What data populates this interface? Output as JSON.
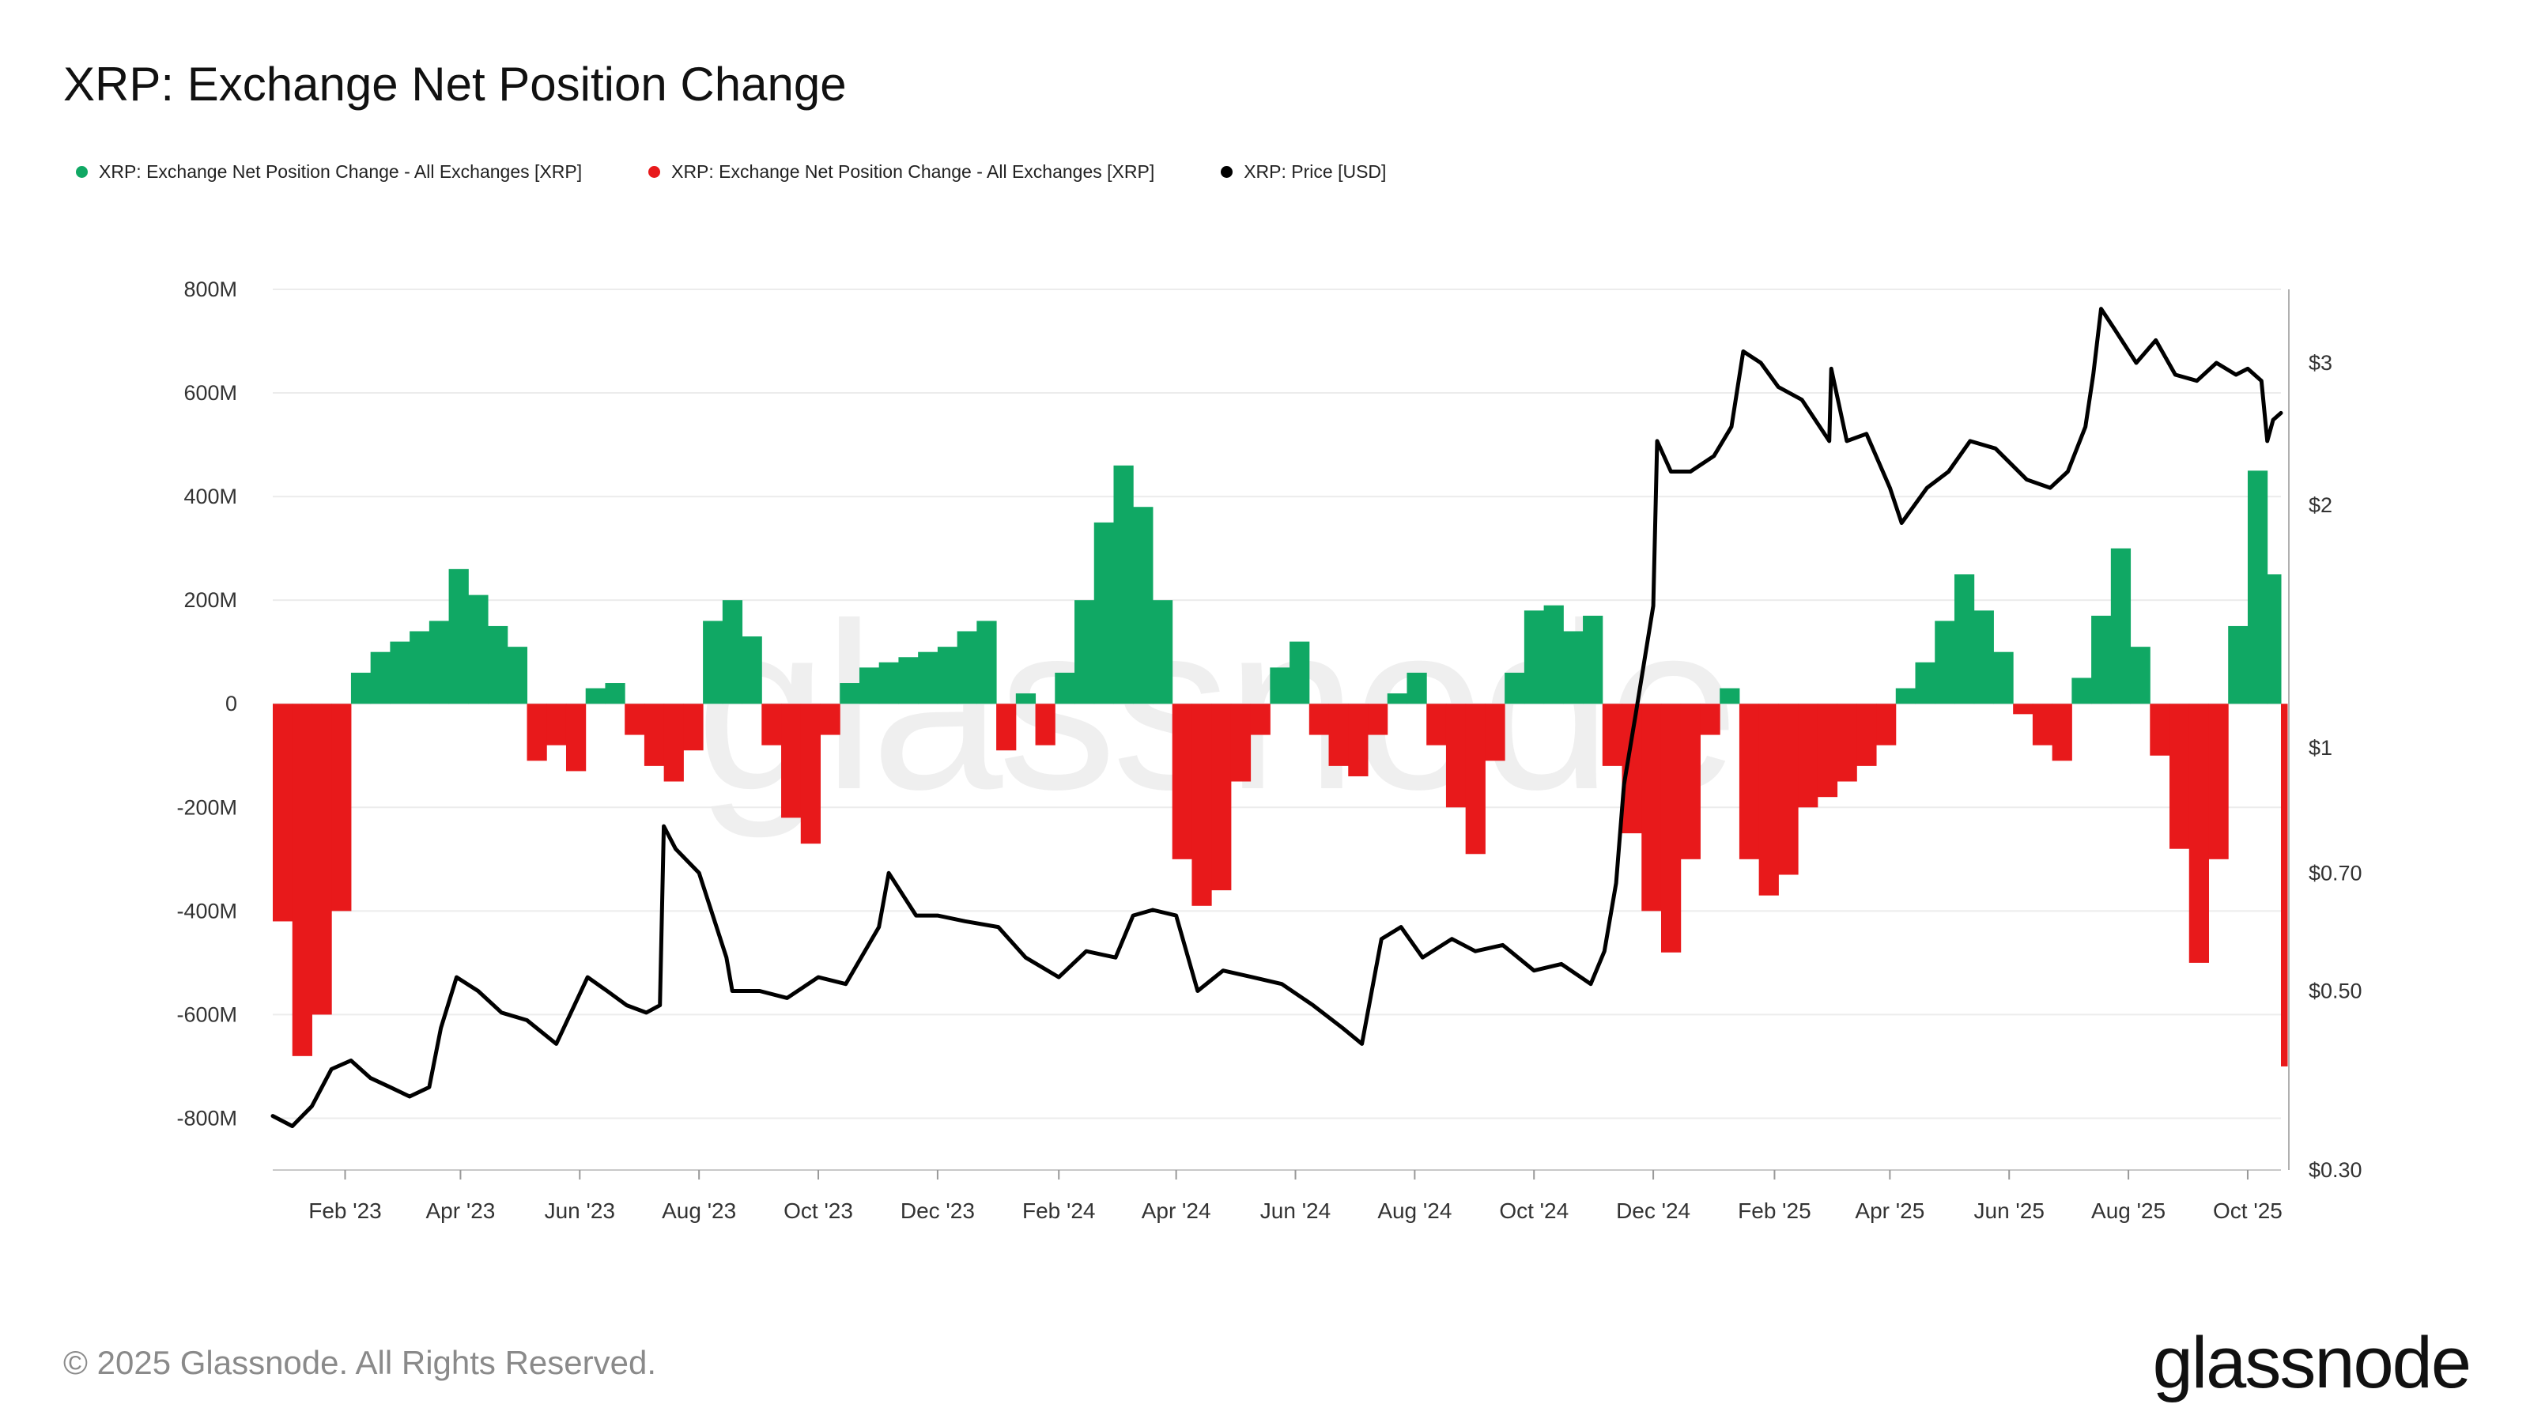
{
  "title": "XRP: Exchange Net Position Change",
  "legend": [
    {
      "label": "XRP: Exchange Net Position Change - All Exchanges [XRP]",
      "color": "#10a864"
    },
    {
      "label": "XRP: Exchange Net Position Change - All Exchanges [XRP]",
      "color": "#e8191b"
    },
    {
      "label": "XRP: Price [USD]",
      "color": "#000000"
    }
  ],
  "watermark": "glassnode",
  "footer": {
    "copyright": "© 2025 Glassnode. All Rights Reserved.",
    "logo": "glassnode"
  },
  "chart_data": {
    "type": "bar",
    "title": "XRP: Exchange Net Position Change",
    "x_start": "2022-12-26",
    "x_end": "2025-10-18",
    "x_ticks": [
      "2023-02-01",
      "2023-04-01",
      "2023-06-01",
      "2023-08-01",
      "2023-10-01",
      "2023-12-01",
      "2024-02-01",
      "2024-04-01",
      "2024-06-01",
      "2024-08-01",
      "2024-10-01",
      "2024-12-01",
      "2025-02-01",
      "2025-04-01",
      "2025-06-01",
      "2025-08-01",
      "2025-10-01"
    ],
    "x_tick_labels": [
      "Feb '23",
      "Apr '23",
      "Jun '23",
      "Aug '23",
      "Oct '23",
      "Dec '23",
      "Feb '24",
      "Apr '24",
      "Jun '24",
      "Aug '24",
      "Oct '24",
      "Dec '24",
      "Feb '25",
      "Apr '25",
      "Jun '25",
      "Aug '25",
      "Oct '25"
    ],
    "left_axis": {
      "ylim": [
        -900,
        800
      ],
      "unit": "M XRP",
      "ticks": [
        800,
        600,
        400,
        200,
        0,
        -200,
        -400,
        -600,
        -800
      ],
      "tick_labels": [
        "800M",
        "600M",
        "400M",
        "200M",
        "0",
        "-200M",
        "-400M",
        "-600M",
        "-800M"
      ]
    },
    "right_axis": {
      "scale": "log",
      "ylim": [
        0.3,
        3.7
      ],
      "ticks": [
        3,
        2,
        1,
        0.7,
        0.5,
        0.3
      ],
      "tick_labels": [
        "$3",
        "$2",
        "$1",
        "$0.70",
        "$0.50",
        "$0.30"
      ]
    },
    "grid": true,
    "legend_position": "top-left",
    "net_position_change": {
      "unit": "M XRP",
      "positive_color": "#10a864",
      "negative_color": "#e8191b",
      "dates": [
        "2022-12-26",
        "2023-01-05",
        "2023-01-15",
        "2023-01-25",
        "2023-02-04",
        "2023-02-14",
        "2023-02-24",
        "2023-03-06",
        "2023-03-16",
        "2023-03-26",
        "2023-04-05",
        "2023-04-15",
        "2023-04-25",
        "2023-05-05",
        "2023-05-15",
        "2023-05-25",
        "2023-06-04",
        "2023-06-14",
        "2023-06-24",
        "2023-07-04",
        "2023-07-14",
        "2023-07-24",
        "2023-08-03",
        "2023-08-13",
        "2023-08-23",
        "2023-09-02",
        "2023-09-12",
        "2023-09-22",
        "2023-10-02",
        "2023-10-12",
        "2023-10-22",
        "2023-11-01",
        "2023-11-11",
        "2023-11-21",
        "2023-12-01",
        "2023-12-11",
        "2023-12-21",
        "2023-12-31",
        "2024-01-10",
        "2024-01-20",
        "2024-01-30",
        "2024-02-09",
        "2024-02-19",
        "2024-02-29",
        "2024-03-10",
        "2024-03-20",
        "2024-03-30",
        "2024-04-09",
        "2024-04-19",
        "2024-04-29",
        "2024-05-09",
        "2024-05-19",
        "2024-05-29",
        "2024-06-08",
        "2024-06-18",
        "2024-06-28",
        "2024-07-08",
        "2024-07-18",
        "2024-07-28",
        "2024-08-07",
        "2024-08-17",
        "2024-08-27",
        "2024-09-06",
        "2024-09-16",
        "2024-09-26",
        "2024-10-06",
        "2024-10-16",
        "2024-10-26",
        "2024-11-05",
        "2024-11-15",
        "2024-11-25",
        "2024-12-05",
        "2024-12-15",
        "2024-12-25",
        "2025-01-04",
        "2025-01-14",
        "2025-01-24",
        "2025-02-03",
        "2025-02-13",
        "2025-02-23",
        "2025-03-05",
        "2025-03-15",
        "2025-03-25",
        "2025-04-04",
        "2025-04-14",
        "2025-04-24",
        "2025-05-04",
        "2025-05-14",
        "2025-05-24",
        "2025-06-03",
        "2025-06-13",
        "2025-06-23",
        "2025-07-03",
        "2025-07-13",
        "2025-07-23",
        "2025-08-02",
        "2025-08-12",
        "2025-08-22",
        "2025-09-01",
        "2025-09-11",
        "2025-09-21",
        "2025-10-01",
        "2025-10-11",
        "2025-10-18"
      ],
      "values": [
        -420,
        -680,
        -600,
        -400,
        60,
        100,
        120,
        140,
        160,
        260,
        210,
        150,
        110,
        -110,
        -80,
        -130,
        30,
        40,
        -60,
        -120,
        -150,
        -90,
        160,
        200,
        130,
        -80,
        -220,
        -270,
        -60,
        40,
        70,
        80,
        90,
        100,
        110,
        140,
        160,
        -90,
        20,
        -80,
        60,
        200,
        350,
        460,
        380,
        200,
        -300,
        -390,
        -360,
        -150,
        -60,
        70,
        120,
        -60,
        -120,
        -140,
        -60,
        20,
        60,
        -80,
        -200,
        -290,
        -110,
        60,
        180,
        190,
        140,
        170,
        -120,
        -250,
        -400,
        -480,
        -300,
        -60,
        30,
        -300,
        -370,
        -330,
        -200,
        -180,
        -150,
        -120,
        -80,
        30,
        80,
        160,
        250,
        180,
        100,
        -20,
        -80,
        -110,
        50,
        170,
        300,
        110,
        -100,
        -280,
        -500,
        -300,
        150,
        450,
        250,
        -700
      ]
    },
    "price_usd": {
      "color": "#000000",
      "dates": [
        "2022-12-26",
        "2023-01-05",
        "2023-01-15",
        "2023-01-25",
        "2023-02-04",
        "2023-02-14",
        "2023-02-24",
        "2023-03-06",
        "2023-03-16",
        "2023-03-22",
        "2023-03-30",
        "2023-04-10",
        "2023-04-22",
        "2023-05-05",
        "2023-05-20",
        "2023-06-05",
        "2023-06-15",
        "2023-06-25",
        "2023-07-05",
        "2023-07-12",
        "2023-07-14",
        "2023-07-20",
        "2023-08-01",
        "2023-08-15",
        "2023-08-18",
        "2023-09-01",
        "2023-09-15",
        "2023-10-01",
        "2023-10-15",
        "2023-11-01",
        "2023-11-06",
        "2023-11-20",
        "2023-12-01",
        "2023-12-15",
        "2024-01-01",
        "2024-01-15",
        "2024-02-01",
        "2024-02-15",
        "2024-03-01",
        "2024-03-10",
        "2024-03-20",
        "2024-04-01",
        "2024-04-12",
        "2024-04-25",
        "2024-05-10",
        "2024-05-25",
        "2024-06-10",
        "2024-06-25",
        "2024-07-05",
        "2024-07-15",
        "2024-07-25",
        "2024-08-05",
        "2024-08-20",
        "2024-09-01",
        "2024-09-15",
        "2024-10-01",
        "2024-10-15",
        "2024-10-30",
        "2024-11-06",
        "2024-11-12",
        "2024-11-16",
        "2024-11-22",
        "2024-12-01",
        "2024-12-03",
        "2024-12-10",
        "2024-12-20",
        "2025-01-01",
        "2025-01-10",
        "2025-01-16",
        "2025-01-25",
        "2025-02-03",
        "2025-02-15",
        "2025-03-01",
        "2025-03-02",
        "2025-03-10",
        "2025-03-20",
        "2025-04-01",
        "2025-04-07",
        "2025-04-20",
        "2025-05-01",
        "2025-05-12",
        "2025-05-25",
        "2025-06-10",
        "2025-06-22",
        "2025-07-01",
        "2025-07-10",
        "2025-07-14",
        "2025-07-18",
        "2025-07-25",
        "2025-08-05",
        "2025-08-15",
        "2025-08-25",
        "2025-09-05",
        "2025-09-15",
        "2025-09-25",
        "2025-10-01",
        "2025-10-08",
        "2025-10-11",
        "2025-10-14",
        "2025-10-18"
      ],
      "values": [
        0.35,
        0.34,
        0.36,
        0.4,
        0.41,
        0.39,
        0.38,
        0.37,
        0.38,
        0.45,
        0.52,
        0.5,
        0.47,
        0.46,
        0.43,
        0.52,
        0.5,
        0.48,
        0.47,
        0.48,
        0.8,
        0.75,
        0.7,
        0.55,
        0.5,
        0.5,
        0.49,
        0.52,
        0.51,
        0.6,
        0.7,
        0.62,
        0.62,
        0.61,
        0.6,
        0.55,
        0.52,
        0.56,
        0.55,
        0.62,
        0.63,
        0.62,
        0.5,
        0.53,
        0.52,
        0.51,
        0.48,
        0.45,
        0.43,
        0.58,
        0.6,
        0.55,
        0.58,
        0.56,
        0.57,
        0.53,
        0.54,
        0.51,
        0.56,
        0.68,
        0.9,
        1.1,
        1.5,
        2.4,
        2.2,
        2.2,
        2.3,
        2.5,
        3.1,
        3.0,
        2.8,
        2.7,
        2.4,
        2.95,
        2.4,
        2.45,
        2.1,
        1.9,
        2.1,
        2.2,
        2.4,
        2.35,
        2.15,
        2.1,
        2.2,
        2.5,
        2.9,
        3.5,
        3.3,
        3.0,
        3.2,
        2.9,
        2.85,
        3.0,
        2.9,
        2.95,
        2.85,
        2.4,
        2.55,
        2.6
      ]
    }
  }
}
